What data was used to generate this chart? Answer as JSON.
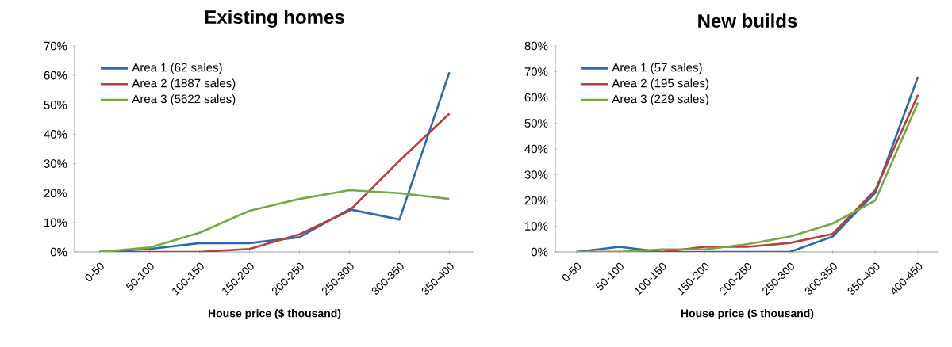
{
  "chart_data": [
    {
      "type": "line",
      "title": "Existing homes",
      "xlabel": "House price ($ thousand)",
      "categories": [
        "0-50",
        "50-100",
        "100-150",
        "150-200",
        "200-250",
        "250-300",
        "300-350",
        "350-400"
      ],
      "series": [
        {
          "name": "Area 1 (62 sales)",
          "color": "#2e6aa9",
          "values": [
            0,
            1,
            3,
            3,
            5,
            14.5,
            11,
            61
          ]
        },
        {
          "name": "Area 2 (1887 sales)",
          "color": "#b0413e",
          "values": [
            0,
            0,
            0,
            1,
            6,
            14,
            31,
            47
          ]
        },
        {
          "name": "Area 3 (5622 sales)",
          "color": "#77a844",
          "values": [
            0,
            1.5,
            6.5,
            14,
            18,
            21,
            20,
            18
          ]
        }
      ],
      "ylim": [
        0,
        70
      ],
      "yticks": [
        {
          "value": 0,
          "label": "0%"
        },
        {
          "value": 10,
          "label": "10%"
        },
        {
          "value": 20,
          "label": "20%"
        },
        {
          "value": 30,
          "label": "30%"
        },
        {
          "value": 40,
          "label": "40%"
        },
        {
          "value": 50,
          "label": "50%"
        },
        {
          "value": 60,
          "label": "60%"
        },
        {
          "value": 70,
          "label": "70%"
        }
      ],
      "grid": false,
      "legend": "top left",
      "marker": "none",
      "line_style": "solid"
    },
    {
      "type": "line",
      "title": "New builds",
      "xlabel": "House price ($ thousand)",
      "categories": [
        "0-50",
        "50-100",
        "100-150",
        "150-200",
        "200-250",
        "250-300",
        "300-350",
        "350-400",
        "400-450"
      ],
      "series": [
        {
          "name": "Area 1 (57 sales)",
          "color": "#2e6aa9",
          "values": [
            0,
            2,
            0,
            0,
            0,
            0,
            6,
            23,
            68
          ]
        },
        {
          "name": "Area 2 (195 sales)",
          "color": "#b0413e",
          "values": [
            0,
            0,
            0,
            2,
            2,
            3.5,
            7,
            24,
            61
          ]
        },
        {
          "name": "Area 3 (229 sales)",
          "color": "#77a844",
          "values": [
            0,
            0,
            1,
            1,
            3,
            6,
            11,
            20,
            58
          ]
        }
      ],
      "ylim": [
        0,
        80
      ],
      "yticks": [
        {
          "value": 0,
          "label": "0%"
        },
        {
          "value": 10,
          "label": "10%"
        },
        {
          "value": 20,
          "label": "20%"
        },
        {
          "value": 30,
          "label": "30%"
        },
        {
          "value": 40,
          "label": "40%"
        },
        {
          "value": 50,
          "label": "50%"
        },
        {
          "value": 60,
          "label": "60%"
        },
        {
          "value": 70,
          "label": "70%"
        },
        {
          "value": 80,
          "label": "80%"
        }
      ],
      "grid": false,
      "legend": "top left",
      "marker": "none",
      "line_style": "solid"
    }
  ]
}
